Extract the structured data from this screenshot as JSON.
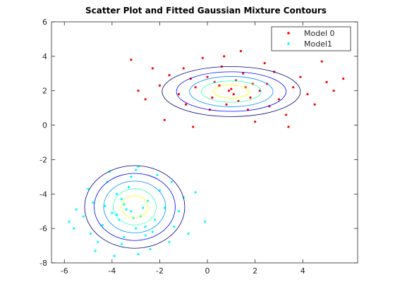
{
  "chart_data": {
    "type": "scatter",
    "title": "Scatter Plot and Fitted Gaussian Mixture Contours",
    "xlim": [
      -6.54,
      6.3
    ],
    "ylim": [
      -8,
      6
    ],
    "xticks": [
      -6,
      -4,
      -2,
      0,
      2,
      4
    ],
    "yticks": [
      -8,
      -6,
      -4,
      -2,
      0,
      2,
      4,
      6
    ],
    "legend": "top-right",
    "series": [
      {
        "name": "Model 0",
        "color": "#ff0000",
        "x": [
          1.0,
          0.3,
          1.8,
          -0.5,
          2.5,
          0.8,
          1.5,
          -1.2,
          3.0,
          0.0,
          2.2,
          -2.0,
          1.2,
          3.6,
          -0.9,
          0.6,
          4.2,
          -1.6,
          2.8,
          1.7,
          -2.6,
          0.2,
          5.0,
          -3.2,
          1.4,
          2.0,
          -1.8,
          4.8,
          5.7,
          -0.2,
          3.3,
          0.9,
          1.1,
          0.5,
          1.9,
          2.6,
          -0.7,
          3.9,
          -2.9,
          1.3,
          0.1,
          2.4,
          -1.0,
          3.4,
          -0.6,
          4.5,
          5.3,
          0.7,
          -2.3,
          1.6
        ],
        "values": [
          2.1,
          2.5,
          1.6,
          2.2,
          2.4,
          1.2,
          3.0,
          1.8,
          1.5,
          2.8,
          2.0,
          2.3,
          2.6,
          2.2,
          1.2,
          3.4,
          1.8,
          2.9,
          3.1,
          0.9,
          1.5,
          1.6,
          2.5,
          3.8,
          4.3,
          0.2,
          0.3,
          3.7,
          2.7,
          3.9,
          0.6,
          2.0,
          1.8,
          2.3,
          2.4,
          1.1,
          2.7,
          2.8,
          2.0,
          1.4,
          0.9,
          3.6,
          3.3,
          -0.1,
          -0.1,
          1.2,
          2.0,
          4.0,
          3.3,
          2.2
        ]
      },
      {
        "name": "Model1",
        "color": "#00ffff",
        "x": [
          -3.2,
          -3.5,
          -2.8,
          -4.0,
          -2.5,
          -3.0,
          -3.8,
          -2.2,
          -4.4,
          -3.3,
          -2.6,
          -4.8,
          -1.8,
          -3.6,
          -5.2,
          -2.0,
          -4.2,
          -1.4,
          -3.0,
          -5.6,
          -2.4,
          -4.6,
          -1.0,
          -5.8,
          -3.9,
          -2.9,
          -0.1,
          -0.5,
          -5.0,
          -3.4,
          -3.1,
          -2.7,
          -3.7,
          -3.6,
          -2.3,
          -4.3,
          -1.5,
          -4.7,
          -2.9,
          -1.6,
          -5.5,
          -3.2,
          -0.8,
          -4.1,
          -2.1,
          -3.5,
          -1.2,
          -4.9,
          -2.6,
          -3.8
        ],
        "values": [
          -5.0,
          -4.6,
          -5.3,
          -5.1,
          -4.4,
          -6.0,
          -4.0,
          -5.5,
          -5.8,
          -3.6,
          -6.4,
          -4.5,
          -4.8,
          -6.9,
          -5.3,
          -3.8,
          -3.3,
          -5.9,
          -2.6,
          -6.0,
          -7.2,
          -6.8,
          -4.2,
          -5.6,
          -7.6,
          -2.4,
          -5.6,
          -3.9,
          -3.7,
          -4.9,
          -5.4,
          -4.8,
          -5.5,
          -4.3,
          -6.2,
          -4.7,
          -3.3,
          -7.3,
          -7.5,
          -6.8,
          -4.9,
          -3.0,
          -6.3,
          -2.7,
          -2.9,
          -6.5,
          -5.0,
          -6.3,
          -5.9,
          -5.2
        ]
      }
    ],
    "contours": [
      {
        "center": [
          1.0,
          1.95
        ],
        "rx": [
          2.9,
          2.3,
          1.75,
          1.25,
          0.75
        ],
        "ry": [
          1.45,
          1.15,
          0.88,
          0.62,
          0.38
        ]
      },
      {
        "center": [
          -3.05,
          -4.75
        ],
        "rx": [
          2.1,
          1.7,
          1.3,
          0.9,
          0.55
        ],
        "ry": [
          2.4,
          1.95,
          1.5,
          1.05,
          0.65
        ]
      }
    ],
    "contour_colors": [
      "#000080",
      "#0000ff",
      "#0090ff",
      "#40ffbf",
      "#ffff00"
    ]
  }
}
